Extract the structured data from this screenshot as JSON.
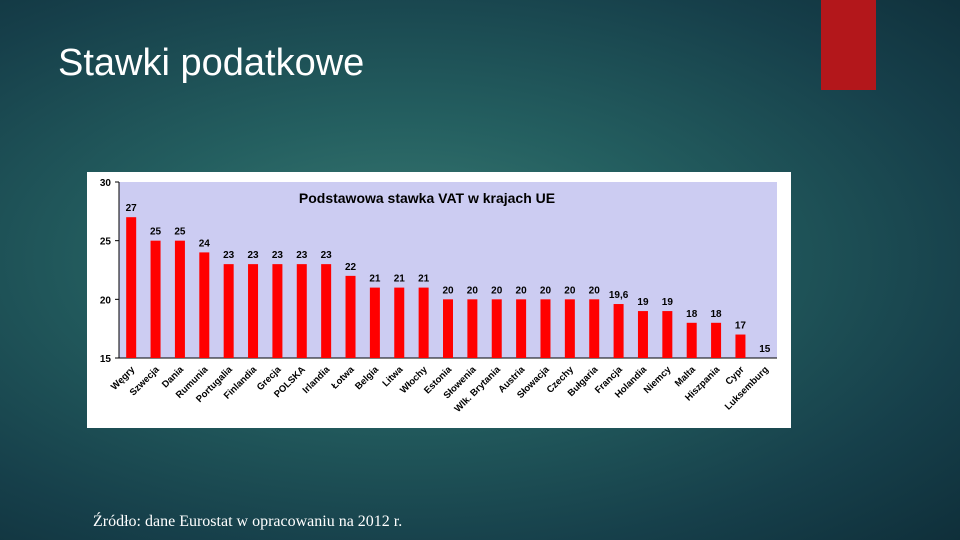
{
  "slide": {
    "title": "Stawki podatkowe",
    "source": "Źródło: dane Eurostat w opracowaniu na 2012 r.",
    "accent_color": "#b3171b",
    "background_color": "#1f5357"
  },
  "chart_data": {
    "type": "bar",
    "title": "Podstawowa stawka VAT w krajach UE",
    "xlabel": "",
    "ylabel": "",
    "ylim": [
      15,
      30
    ],
    "yticks": [
      15,
      20,
      25,
      30
    ],
    "grid": false,
    "legend": "none",
    "bar_color": "#ff0000",
    "plot_background": "#ccccf2",
    "categories": [
      "Węgry",
      "Szwecja",
      "Dania",
      "Rumunia",
      "Portugalia",
      "Finlandia",
      "Grecja",
      "POLSKA",
      "Irlandia",
      "Łotwa",
      "Belgia",
      "Litwa",
      "Włochy",
      "Estonia",
      "Słowenia",
      "Wlk. Brytania",
      "Austria",
      "Słowacja",
      "Czechy",
      "Bułgaria",
      "Francja",
      "Holandia",
      "Niemcy",
      "Malta",
      "Hiszpania",
      "Cypr",
      "Luksemburg"
    ],
    "values": [
      27,
      25,
      25,
      24,
      23,
      23,
      23,
      23,
      23,
      22,
      21,
      21,
      21,
      20,
      20,
      20,
      20,
      20,
      20,
      20,
      19.6,
      19,
      19,
      18,
      18,
      17,
      15
    ],
    "value_labels": [
      "27",
      "25",
      "25",
      "24",
      "23",
      "23",
      "23",
      "23",
      "23",
      "22",
      "21",
      "21",
      "21",
      "20",
      "20",
      "20",
      "20",
      "20",
      "20",
      "20",
      "19,6",
      "19",
      "19",
      "18",
      "18",
      "17",
      "15"
    ]
  }
}
